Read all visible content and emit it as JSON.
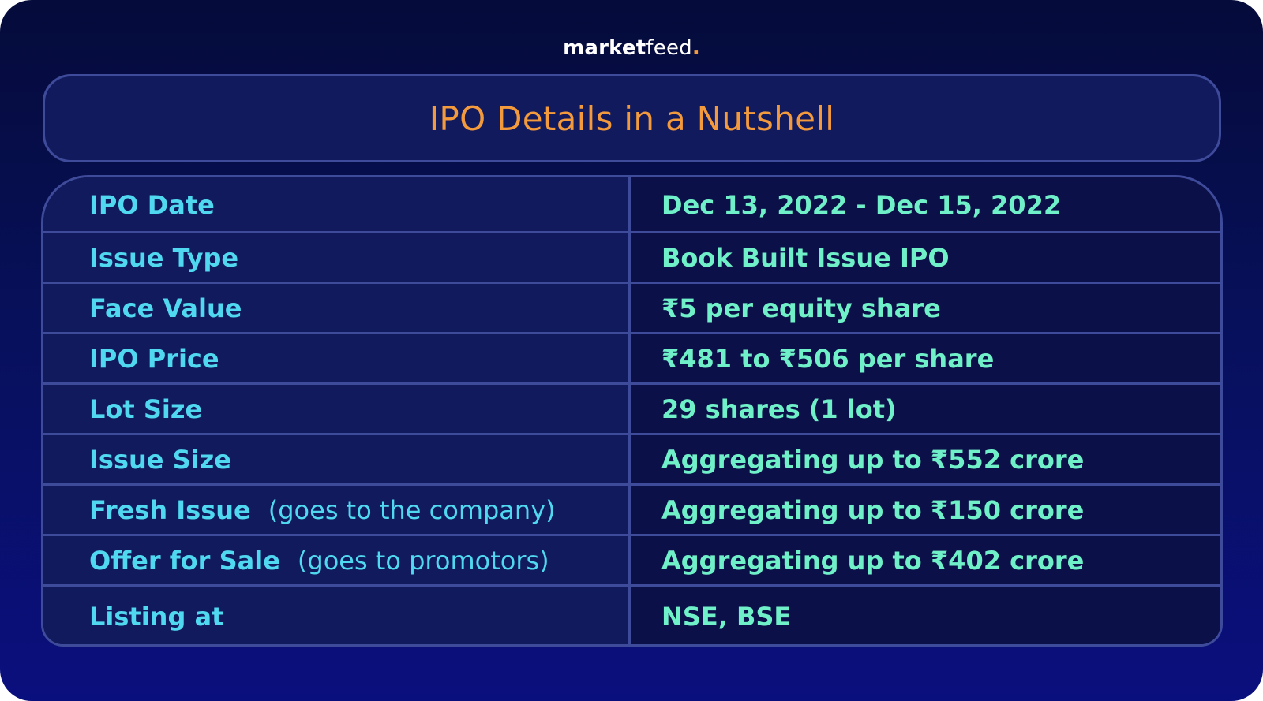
{
  "brand": {
    "name_bold": "market",
    "name_light": "feed",
    "dot": "."
  },
  "title": "IPO Details in a Nutshell",
  "rows": [
    {
      "label": "IPO Date",
      "note": "",
      "value": "Dec 13, 2022 - Dec 15, 2022"
    },
    {
      "label": "Issue Type",
      "note": "",
      "value": "Book Built Issue IPO"
    },
    {
      "label": "Face Value",
      "note": "",
      "value": "₹5 per equity share"
    },
    {
      "label": "IPO Price",
      "note": "",
      "value": "₹481 to ₹506 per share"
    },
    {
      "label": "Lot Size",
      "note": "",
      "value": "29 shares (1 lot)"
    },
    {
      "label": "Issue Size",
      "note": "",
      "value": "Aggregating up to ₹552 crore"
    },
    {
      "label": "Fresh Issue",
      "note": "(goes to the company)",
      "value": "Aggregating up to ₹150 crore"
    },
    {
      "label": "Offer for Sale",
      "note": "(goes to promotors)",
      "value": "Aggregating up to ₹402 crore"
    },
    {
      "label": "Listing at",
      "note": "",
      "value": "NSE, BSE"
    }
  ],
  "colors": {
    "title": "#f39a3c",
    "label": "#4fd8f0",
    "value": "#6ff0c8",
    "border": "#3e4a9a"
  }
}
